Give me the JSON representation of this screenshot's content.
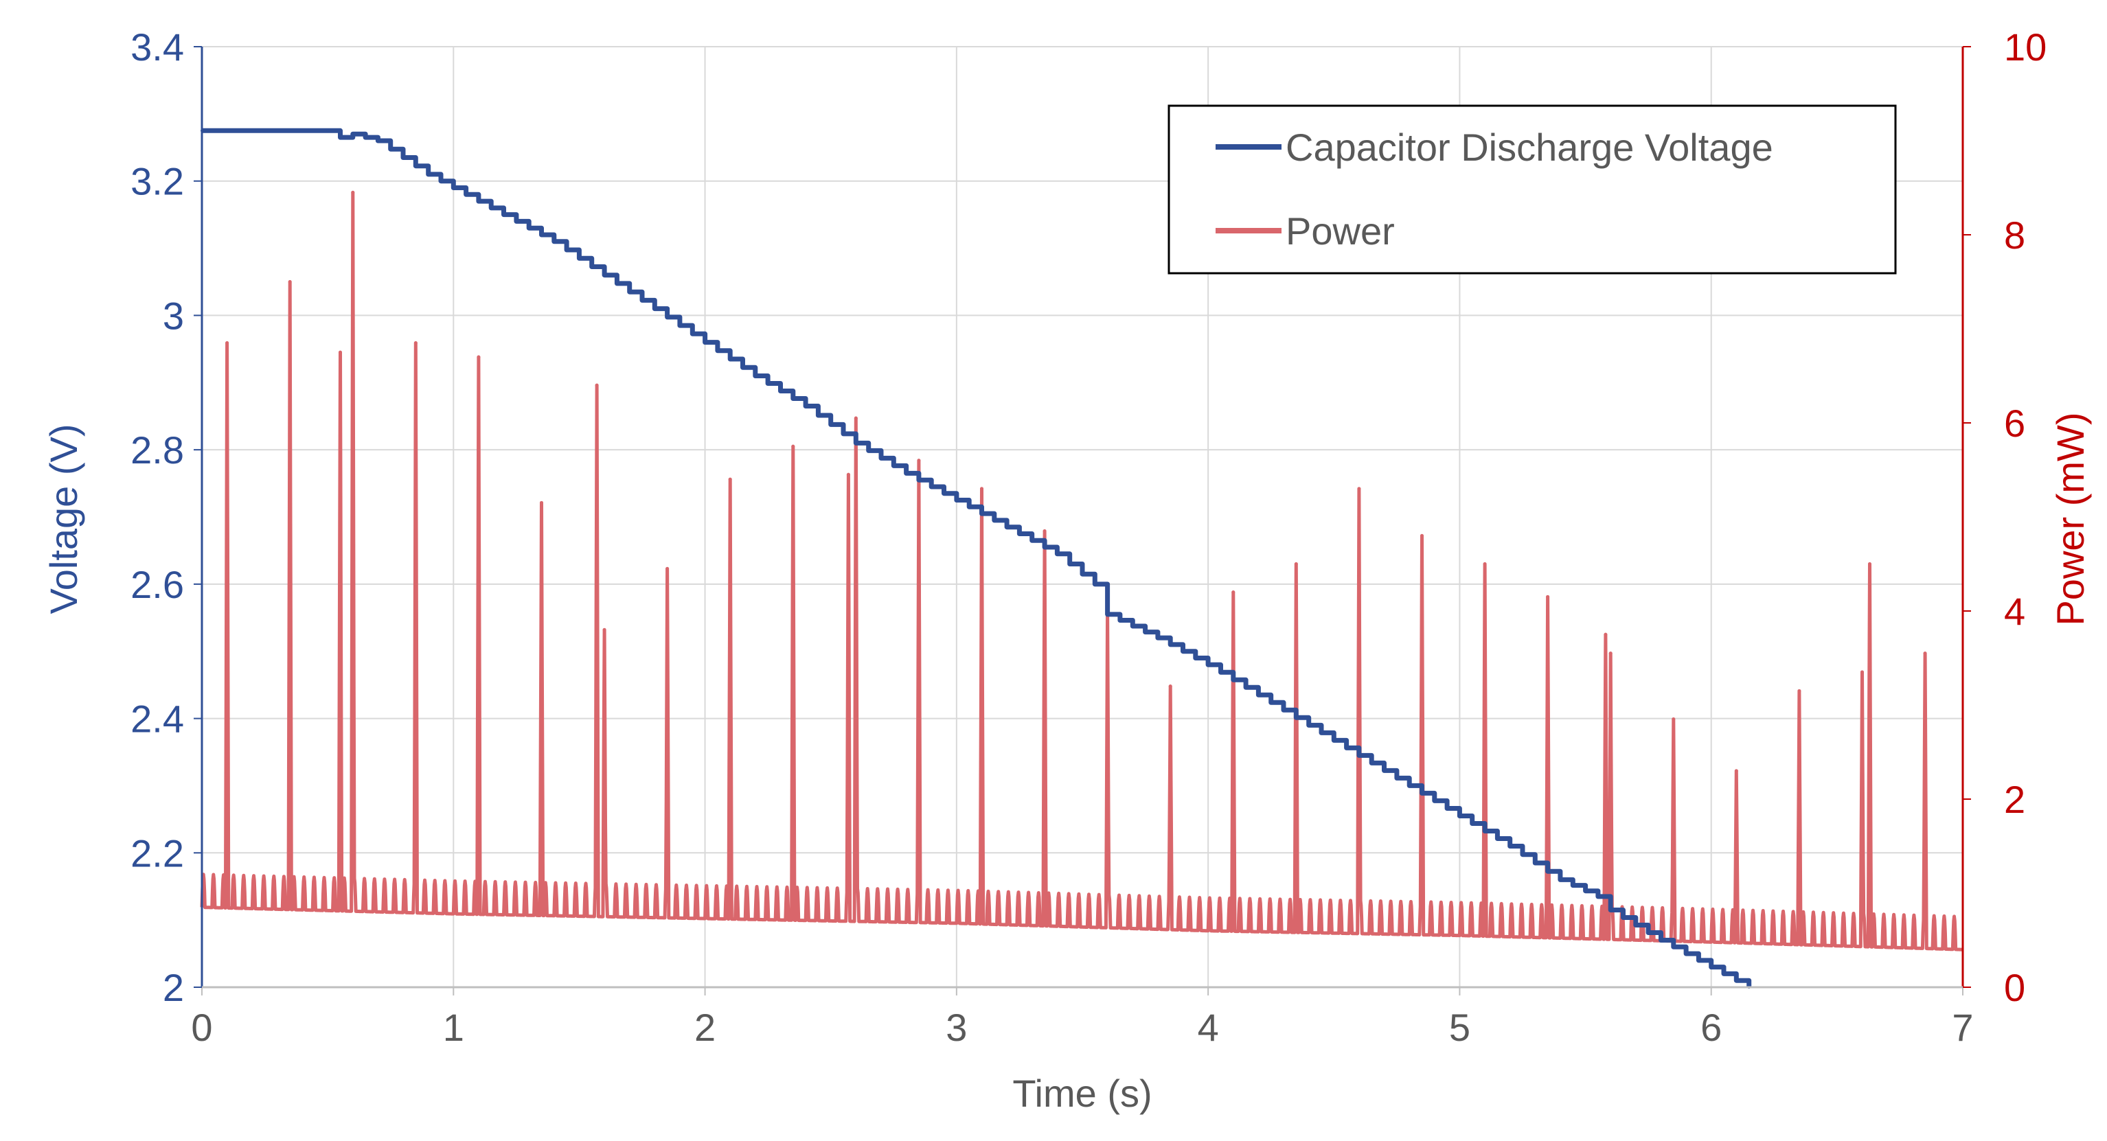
{
  "chart_data": {
    "type": "line",
    "xlabel": "Time (s)",
    "ylabel": "Voltage (V)",
    "y2label": "Power (mW)",
    "xlim": [
      0,
      7
    ],
    "ylim": [
      2,
      3.4
    ],
    "y2lim": [
      0,
      10
    ],
    "x_ticks": [
      "0",
      "1",
      "2",
      "3",
      "4",
      "5",
      "6",
      "7"
    ],
    "y_ticks": [
      "2",
      "2.2",
      "2.4",
      "2.6",
      "2.8",
      "3",
      "3.2",
      "3.4"
    ],
    "y2_ticks": [
      "0",
      "2",
      "4",
      "6",
      "8",
      "10"
    ],
    "grid": true,
    "legend_position": "top-right",
    "colors": {
      "voltage": "#2f4f96",
      "power": "#d9666b",
      "left_axis": "#2f4f96",
      "right_axis": "#c00000",
      "grid": "#d9d9d9",
      "text": "#595959"
    },
    "series": [
      {
        "name": "Capacitor Discharge Voltage",
        "axis": "left",
        "x": [
          0,
          0.5,
          0.55,
          0.6,
          0.7,
          0.8,
          0.9,
          1.0,
          1.2,
          1.4,
          1.6,
          1.8,
          2.0,
          2.2,
          2.4,
          2.6,
          2.8,
          3.0,
          3.2,
          3.4,
          3.55,
          3.6,
          3.8,
          4.0,
          4.2,
          4.4,
          4.6,
          4.8,
          5.0,
          5.2,
          5.4,
          5.55,
          5.6,
          5.8,
          6.0,
          6.1,
          6.15
        ],
        "values": [
          3.275,
          3.275,
          3.265,
          3.27,
          3.26,
          3.235,
          3.21,
          3.19,
          3.15,
          3.11,
          3.06,
          3.01,
          2.96,
          2.91,
          2.865,
          2.81,
          2.765,
          2.725,
          2.685,
          2.645,
          2.6,
          2.555,
          2.52,
          2.48,
          2.435,
          2.39,
          2.345,
          2.3,
          2.255,
          2.21,
          2.16,
          2.135,
          2.115,
          2.07,
          2.03,
          2.01,
          2.0
        ]
      },
      {
        "name": "Power",
        "axis": "right",
        "baseline": {
          "x": [
            0,
            1,
            2,
            3,
            4,
            5,
            6,
            7
          ],
          "values": [
            0.85,
            0.78,
            0.73,
            0.68,
            0.6,
            0.55,
            0.48,
            0.4
          ]
        },
        "ripple_amplitude": 0.35,
        "ripple_period_s": 0.04,
        "peaks": [
          {
            "x": 0.1,
            "value": 6.85
          },
          {
            "x": 0.35,
            "value": 7.5
          },
          {
            "x": 0.55,
            "value": 6.75
          },
          {
            "x": 0.6,
            "value": 8.45
          },
          {
            "x": 0.85,
            "value": 6.85
          },
          {
            "x": 1.1,
            "value": 6.7
          },
          {
            "x": 1.35,
            "value": 5.15
          },
          {
            "x": 1.57,
            "value": 6.4
          },
          {
            "x": 1.6,
            "value": 3.8
          },
          {
            "x": 1.85,
            "value": 4.45
          },
          {
            "x": 2.1,
            "value": 5.4
          },
          {
            "x": 2.35,
            "value": 5.75
          },
          {
            "x": 2.57,
            "value": 5.45
          },
          {
            "x": 2.6,
            "value": 6.05
          },
          {
            "x": 2.85,
            "value": 5.6
          },
          {
            "x": 3.1,
            "value": 5.3
          },
          {
            "x": 3.35,
            "value": 4.85
          },
          {
            "x": 3.6,
            "value": 4.0
          },
          {
            "x": 3.85,
            "value": 3.2
          },
          {
            "x": 4.1,
            "value": 4.2
          },
          {
            "x": 4.35,
            "value": 4.5
          },
          {
            "x": 4.6,
            "value": 5.3
          },
          {
            "x": 4.85,
            "value": 4.8
          },
          {
            "x": 5.1,
            "value": 4.5
          },
          {
            "x": 5.35,
            "value": 4.15
          },
          {
            "x": 5.58,
            "value": 3.75
          },
          {
            "x": 5.6,
            "value": 3.55
          },
          {
            "x": 5.85,
            "value": 2.85
          },
          {
            "x": 6.1,
            "value": 2.3
          },
          {
            "x": 6.35,
            "value": 3.15
          },
          {
            "x": 6.6,
            "value": 3.35
          },
          {
            "x": 6.63,
            "value": 4.5
          },
          {
            "x": 6.85,
            "value": 3.55
          }
        ]
      }
    ]
  }
}
